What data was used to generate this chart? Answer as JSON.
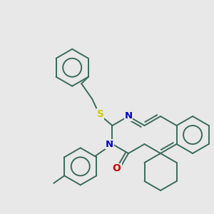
{
  "background_color": "#e8e8e8",
  "bond_color": "#3a6a5a",
  "S_color": "#cccc00",
  "N_color": "#0000cc",
  "O_color": "#cc0000",
  "line_width": 1.4,
  "figsize": [
    3.0,
    3.0
  ],
  "dpi": 100,
  "xlim": [
    0,
    300
  ],
  "ylim": [
    0,
    300
  ]
}
